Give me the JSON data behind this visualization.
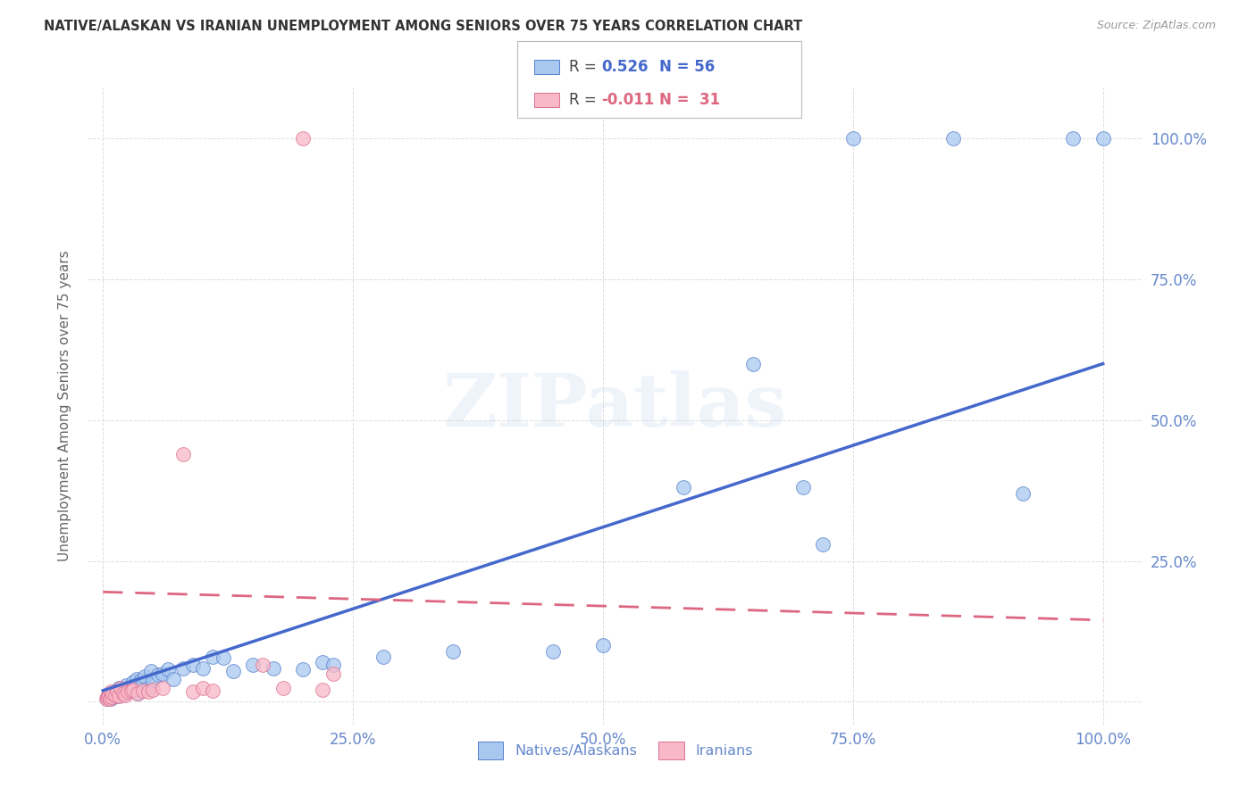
{
  "title": "NATIVE/ALASKAN VS IRANIAN UNEMPLOYMENT AMONG SENIORS OVER 75 YEARS CORRELATION CHART",
  "source": "Source: ZipAtlas.com",
  "ylabel": "Unemployment Among Seniors over 75 years",
  "x_ticks": [
    0.0,
    0.25,
    0.5,
    0.75,
    1.0
  ],
  "y_ticks": [
    0.0,
    0.25,
    0.5,
    0.75,
    1.0
  ],
  "x_tick_labels": [
    "0.0%",
    "25.0%",
    "50.0%",
    "75.0%",
    "100.0%"
  ],
  "y_tick_labels_right": [
    "",
    "25.0%",
    "50.0%",
    "75.0%",
    "100.0%"
  ],
  "legend_labels": [
    "Natives/Alaskans",
    "Iranians"
  ],
  "r_blue": 0.526,
  "n_blue": 56,
  "r_pink": -0.011,
  "n_pink": 31,
  "blue_fill": "#A8C8F0",
  "pink_fill": "#F8B8C8",
  "blue_edge": "#5580CC",
  "pink_edge": "#DD7090",
  "blue_line": "#4468CC",
  "pink_line": "#DD6680",
  "tick_color": "#6688CC",
  "ylabel_color": "#666666",
  "title_color": "#333333",
  "source_color": "#999999",
  "grid_color": "#DDDDDD",
  "watermark_color": "#C8D8EE",
  "background": "#FFFFFF",
  "watermark": "ZIPatlas",
  "blue_slope": 0.58,
  "blue_intercept": 0.02,
  "pink_slope": -0.05,
  "pink_intercept": 0.195,
  "blue_x": [
    0.004,
    0.005,
    0.006,
    0.007,
    0.008,
    0.009,
    0.01,
    0.011,
    0.012,
    0.014,
    0.015,
    0.016,
    0.018,
    0.02,
    0.022,
    0.023,
    0.025,
    0.027,
    0.03,
    0.032,
    0.034,
    0.035,
    0.038,
    0.04,
    0.042,
    0.045,
    0.048,
    0.05,
    0.055,
    0.06,
    0.065,
    0.07,
    0.08,
    0.09,
    0.1,
    0.11,
    0.12,
    0.13,
    0.15,
    0.17,
    0.2,
    0.22,
    0.23,
    0.28,
    0.35,
    0.45,
    0.5,
    0.58,
    0.65,
    0.7,
    0.72,
    0.75,
    0.85,
    0.92,
    0.97,
    1.0
  ],
  "blue_y": [
    0.005,
    0.01,
    0.008,
    0.012,
    0.006,
    0.015,
    0.009,
    0.018,
    0.014,
    0.02,
    0.01,
    0.025,
    0.018,
    0.022,
    0.015,
    0.03,
    0.02,
    0.025,
    0.035,
    0.028,
    0.04,
    0.015,
    0.038,
    0.032,
    0.045,
    0.025,
    0.055,
    0.038,
    0.048,
    0.05,
    0.058,
    0.04,
    0.06,
    0.065,
    0.06,
    0.08,
    0.078,
    0.055,
    0.065,
    0.06,
    0.058,
    0.07,
    0.065,
    0.08,
    0.09,
    0.09,
    0.1,
    0.38,
    0.6,
    0.38,
    0.28,
    1.0,
    1.0,
    0.37,
    1.0,
    1.0
  ],
  "pink_x": [
    0.003,
    0.004,
    0.005,
    0.006,
    0.007,
    0.008,
    0.009,
    0.01,
    0.012,
    0.014,
    0.016,
    0.018,
    0.02,
    0.022,
    0.025,
    0.028,
    0.03,
    0.035,
    0.04,
    0.045,
    0.05,
    0.06,
    0.08,
    0.09,
    0.1,
    0.11,
    0.16,
    0.18,
    0.2,
    0.22,
    0.23
  ],
  "pink_y": [
    0.005,
    0.008,
    0.01,
    0.012,
    0.006,
    0.018,
    0.008,
    0.015,
    0.012,
    0.02,
    0.01,
    0.025,
    0.015,
    0.012,
    0.018,
    0.02,
    0.022,
    0.015,
    0.02,
    0.018,
    0.022,
    0.025,
    0.44,
    0.018,
    0.025,
    0.02,
    0.065,
    0.025,
    1.0,
    0.022,
    0.05
  ]
}
